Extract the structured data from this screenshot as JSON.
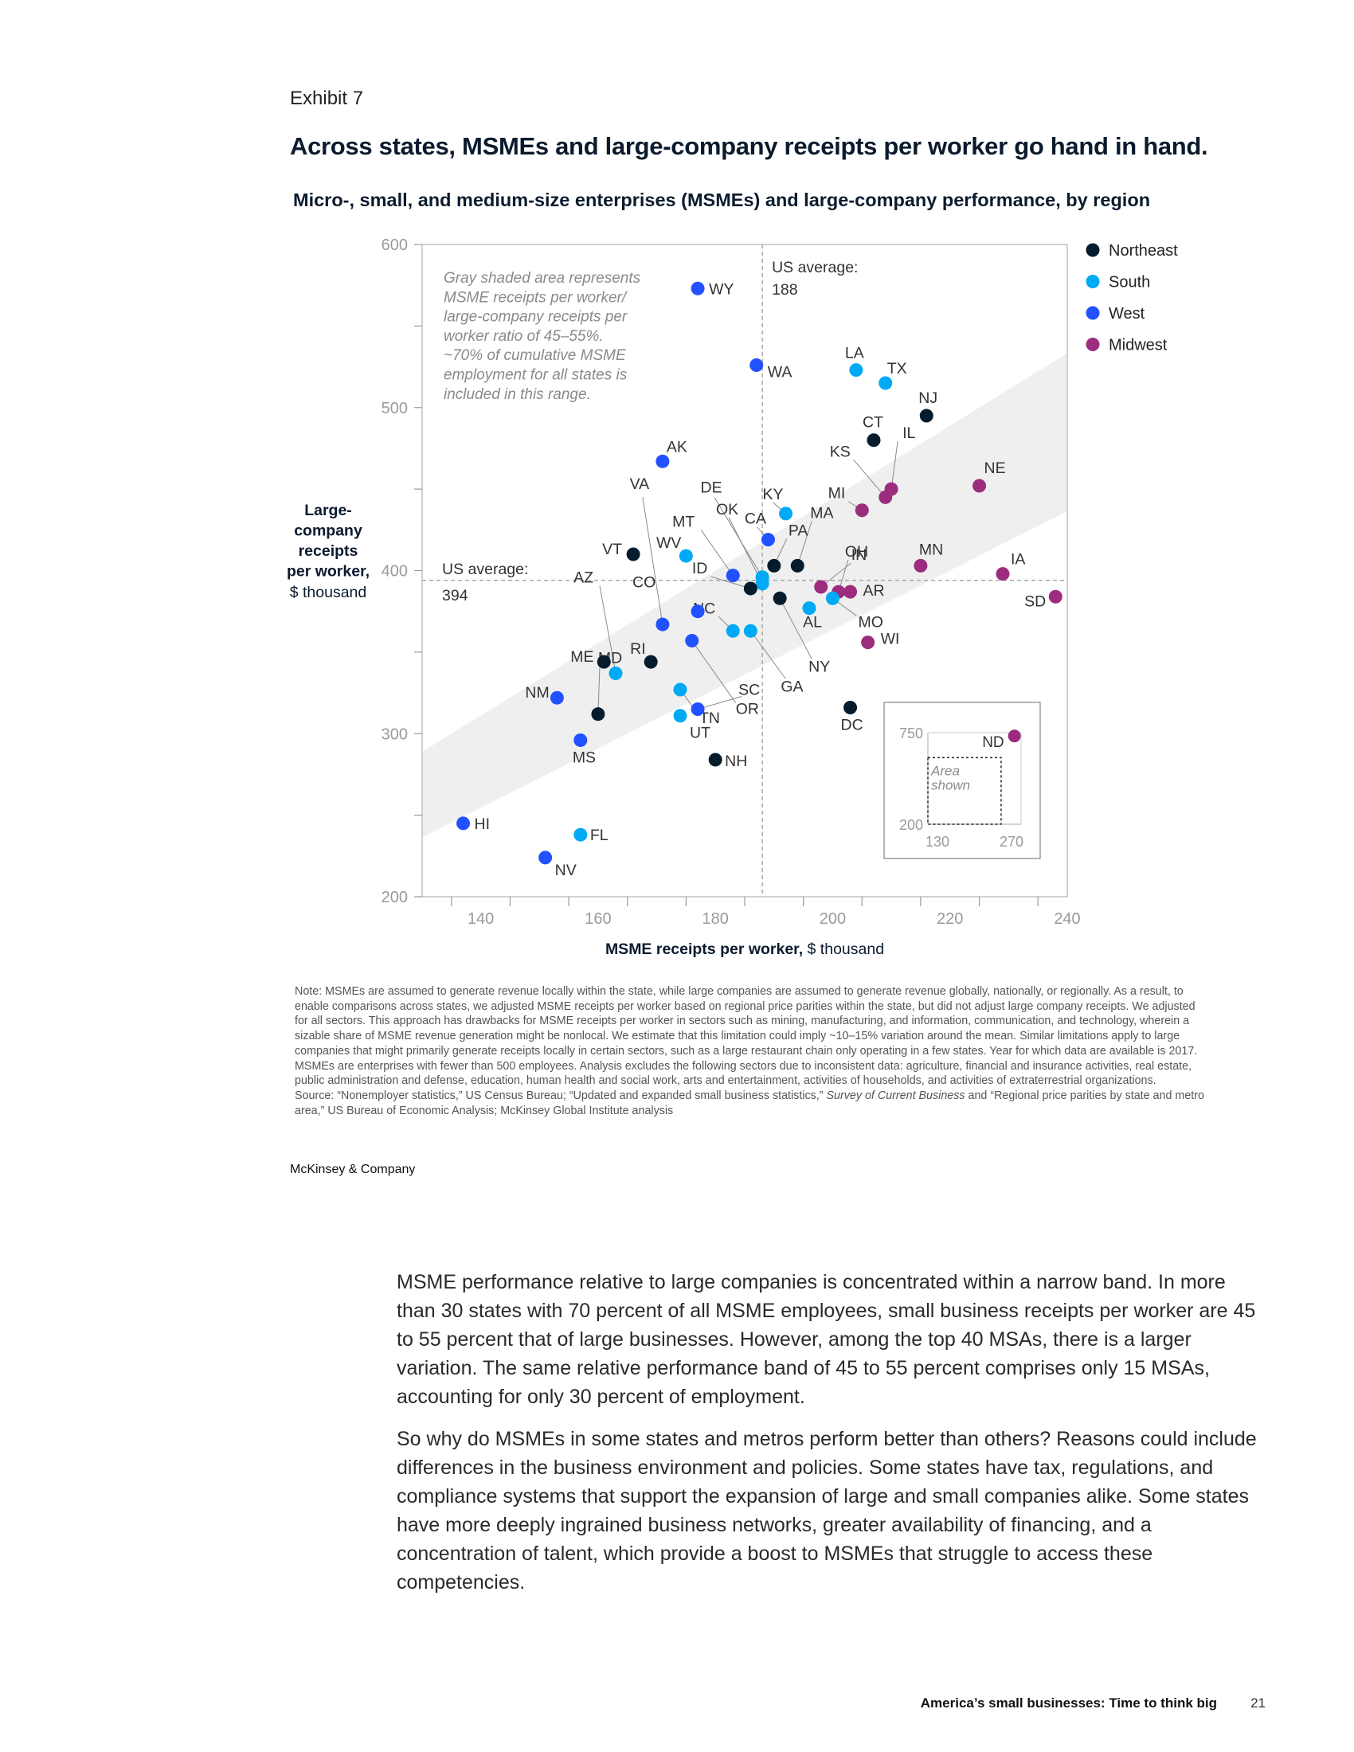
{
  "header": {
    "exhibit": "Exhibit 7",
    "title": "Across states, MSMEs and large-company receipts per worker go hand in hand.",
    "subtitle": "Micro-, small, and medium-size enterprises (MSMEs) and large-company performance, by region"
  },
  "chart_data": {
    "type": "scatter",
    "xlabel_bold": "MSME receipts per worker,",
    "xlabel_unit": " $ thousand",
    "ylabel_lines": [
      "Large-",
      "company",
      "receipts",
      "per worker,"
    ],
    "ylabel_unit": "$ thousand",
    "xlim": [
      130,
      240
    ],
    "ylim": [
      200,
      600
    ],
    "x_ticks": [
      140,
      160,
      180,
      200,
      220,
      240
    ],
    "y_ticks": [
      200,
      300,
      400,
      500,
      600
    ],
    "band_note_lines": [
      "Gray shaded area represents",
      "MSME receipts per worker/",
      "large-company receipts per",
      "worker ratio of 45–55%.",
      "~70% of cumulative MSME",
      "employment for all states is",
      "included in this range."
    ],
    "band_ratio_range": [
      0.45,
      0.55
    ],
    "us_average_x": {
      "label": "US average:",
      "value": 188
    },
    "us_average_y": {
      "label": "US average:",
      "value": 394
    },
    "legend": [
      {
        "region": "Northeast",
        "color": "#051c2c"
      },
      {
        "region": "South",
        "color": "#00a9f4"
      },
      {
        "region": "West",
        "color": "#2251ff"
      },
      {
        "region": "Midwest",
        "color": "#9b2c7e"
      }
    ],
    "points": [
      {
        "state": "WY",
        "region": "West",
        "x": 177,
        "y": 573
      },
      {
        "state": "WA",
        "region": "West",
        "x": 187,
        "y": 526
      },
      {
        "state": "LA",
        "region": "South",
        "x": 204,
        "y": 523
      },
      {
        "state": "TX",
        "region": "South",
        "x": 209,
        "y": 515
      },
      {
        "state": "NJ",
        "region": "Northeast",
        "x": 216,
        "y": 495
      },
      {
        "state": "CT",
        "region": "Northeast",
        "x": 207,
        "y": 480
      },
      {
        "state": "AK",
        "region": "West",
        "x": 171,
        "y": 467
      },
      {
        "state": "IL",
        "region": "Midwest",
        "x": 210,
        "y": 450
      },
      {
        "state": "NE",
        "region": "Midwest",
        "x": 225,
        "y": 452
      },
      {
        "state": "KS",
        "region": "Midwest",
        "x": 209,
        "y": 445
      },
      {
        "state": "MI",
        "region": "Midwest",
        "x": 205,
        "y": 437
      },
      {
        "state": "KY",
        "region": "South",
        "x": 192,
        "y": 435
      },
      {
        "state": "CA",
        "region": "West",
        "x": 189,
        "y": 419
      },
      {
        "state": "VT",
        "region": "Northeast",
        "x": 166,
        "y": 410
      },
      {
        "state": "WV",
        "region": "South",
        "x": 175,
        "y": 409
      },
      {
        "state": "MA",
        "region": "Northeast",
        "x": 194,
        "y": 403
      },
      {
        "state": "PA",
        "region": "Northeast",
        "x": 190,
        "y": 403
      },
      {
        "state": "MN",
        "region": "Midwest",
        "x": 215,
        "y": 403
      },
      {
        "state": "IA",
        "region": "Midwest",
        "x": 229,
        "y": 398
      },
      {
        "state": "DE",
        "region": "South",
        "x": 188,
        "y": 396
      },
      {
        "state": "OK",
        "region": "South",
        "x": 188,
        "y": 392
      },
      {
        "state": "MT",
        "region": "West",
        "x": 183,
        "y": 397
      },
      {
        "state": "IN",
        "region": "Midwest",
        "x": 198,
        "y": 390
      },
      {
        "state": "ID",
        "region": "Northeast",
        "x": 186,
        "y": 389
      },
      {
        "state": "OH",
        "region": "Midwest",
        "x": 201,
        "y": 387
      },
      {
        "state": "AR",
        "region": "Midwest",
        "x": 203,
        "y": 387
      },
      {
        "state": "SD",
        "region": "Midwest",
        "x": 238,
        "y": 384
      },
      {
        "state": "MO",
        "region": "South",
        "x": 200,
        "y": 383
      },
      {
        "state": "NY",
        "region": "Northeast",
        "x": 191,
        "y": 383
      },
      {
        "state": "AL",
        "region": "South",
        "x": 196,
        "y": 377
      },
      {
        "state": "CO",
        "region": "West",
        "x": 177,
        "y": 375
      },
      {
        "state": "VA",
        "region": "West",
        "x": 171,
        "y": 367
      },
      {
        "state": "NC",
        "region": "South",
        "x": 183,
        "y": 363
      },
      {
        "state": "GA",
        "region": "South",
        "x": 186,
        "y": 363
      },
      {
        "state": "WI",
        "region": "Midwest",
        "x": 206,
        "y": 356
      },
      {
        "state": "OR",
        "region": "West",
        "x": 176,
        "y": 357
      },
      {
        "state": "ME",
        "region": "Northeast",
        "x": 161,
        "y": 344
      },
      {
        "state": "RI",
        "region": "Northeast",
        "x": 169,
        "y": 344
      },
      {
        "state": "AZ",
        "region": "South",
        "x": 163,
        "y": 337
      },
      {
        "state": "TN",
        "region": "South",
        "x": 174,
        "y": 327
      },
      {
        "state": "NM",
        "region": "West",
        "x": 153,
        "y": 322
      },
      {
        "state": "DC",
        "region": "Northeast",
        "x": 203,
        "y": 316
      },
      {
        "state": "SC",
        "region": "West",
        "x": 177,
        "y": 315
      },
      {
        "state": "MD",
        "region": "Northeast",
        "x": 160,
        "y": 312
      },
      {
        "state": "UT",
        "region": "South",
        "x": 174,
        "y": 311
      },
      {
        "state": "MS",
        "region": "West",
        "x": 157,
        "y": 296
      },
      {
        "state": "NH",
        "region": "Northeast",
        "x": 180,
        "y": 284
      },
      {
        "state": "HI",
        "region": "West",
        "x": 137,
        "y": 245
      },
      {
        "state": "FL",
        "region": "South",
        "x": 157,
        "y": 238
      },
      {
        "state": "NV",
        "region": "West",
        "x": 151,
        "y": 224
      }
    ],
    "inset": {
      "xlim": [
        130,
        270
      ],
      "ylim": [
        200,
        750
      ],
      "x_ticks": [
        130,
        270
      ],
      "y_ticks": [
        200,
        750
      ],
      "area_label_lines": [
        "Area",
        "shown"
      ],
      "outlier": {
        "state": "ND",
        "region": "Midwest",
        "x": 260,
        "y": 730
      }
    }
  },
  "notes": {
    "note": "Note: MSMEs are assumed to generate revenue locally within the state, while large companies are assumed to generate revenue globally, nationally, or regionally. As a result, to enable comparisons across states, we adjusted MSME receipts per worker based on regional price parities within the state, but did not adjust large company receipts. We adjusted for all sectors. This approach has drawbacks for MSME receipts per worker in sectors such as mining, manufacturing, and information, communication, and technology, wherein a sizable share of MSME revenue generation might be nonlocal. We estimate that this limitation could imply ~10–15% variation around the mean. Similar limitations apply to large companies that might primarily generate receipts locally in certain sectors, such as a large restaurant chain only operating in a few states. Year for which data are available is 2017. MSMEs are enterprises with fewer than 500 employees. Analysis excludes the following sectors due to inconsistent data: agriculture, financial and insurance activities, real estate, public administration and defense, education, human health and social work, arts and entertainment, activities of households, and activities of extraterrestrial organizations.",
    "source_prefix": "Source: “Nonemployer statistics,” US Census Bureau; “Updated and expanded small business statistics,” ",
    "source_italic": "Survey of Current Business",
    "source_suffix": " and “Regional price parities by state and metro area,” US Bureau of Economic Analysis; McKinsey Global Institute analysis"
  },
  "brand": "McKinsey & Company",
  "body": {
    "paragraph1": "MSME performance relative to large companies is concentrated within a narrow band. In more than 30 states with 70 percent of all MSME employees, small business receipts per worker are 45 to 55 percent that of large businesses. However, among the top 40 MSAs, there is a larger variation. The same relative performance band of 45 to 55 percent comprises only 15 MSAs, accounting for only 30 percent of employment.",
    "paragraph2": "So why do MSMEs in some states and metros perform better than others? Reasons could include differences in the business environment and policies. Some states have tax, regulations, and compliance systems that support the expansion of large and small companies alike. Some states have more deeply ingrained business networks, greater availability of financing, and a concentration of talent, which provide a boost to MSMEs that struggle to access these competencies."
  },
  "footer": {
    "title": "America’s small businesses: Time to think big",
    "page": "21"
  }
}
